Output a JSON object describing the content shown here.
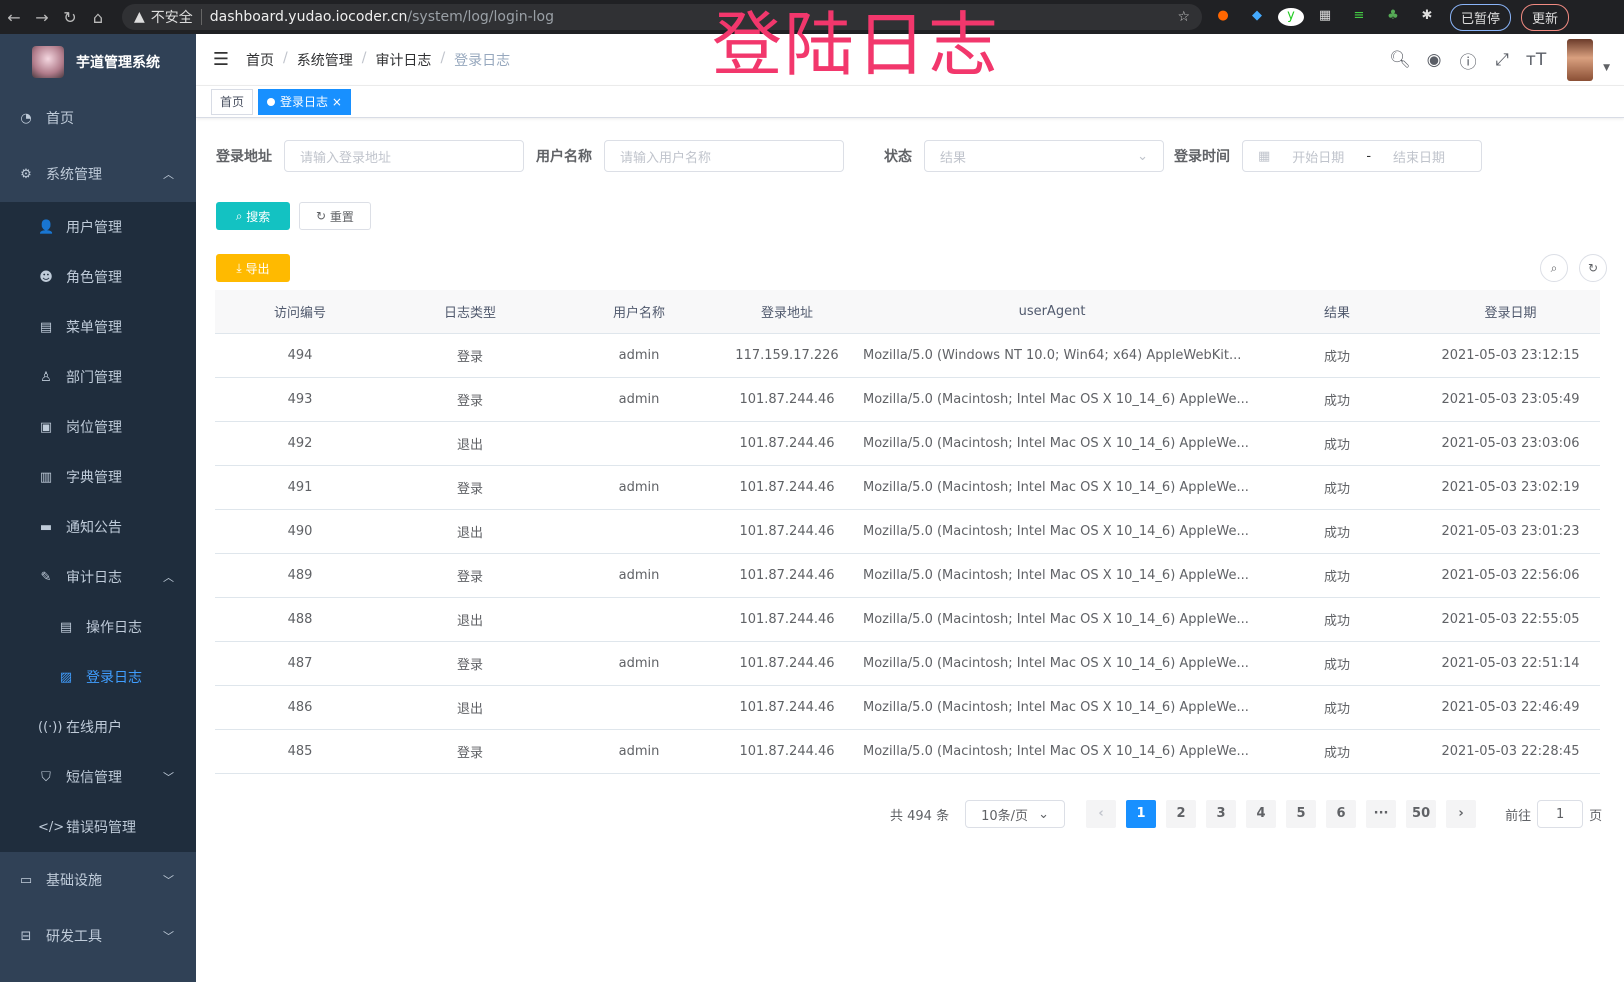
{
  "browser": {
    "security": "不安全",
    "host": "dashboard.yudao.iocoder.cn",
    "path": "/system/log/login-log",
    "paused": "已暂停",
    "update": "更新"
  },
  "overlay_title": "登陆日志",
  "sidebar": {
    "app_title": "芋道管理系统",
    "items": [
      {
        "label": "首页",
        "icon": "dashboard-icon"
      },
      {
        "label": "系统管理",
        "icon": "gear-icon",
        "expanded": true,
        "children": [
          {
            "label": "用户管理",
            "icon": "user-icon"
          },
          {
            "label": "角色管理",
            "icon": "peoples-icon"
          },
          {
            "label": "菜单管理",
            "icon": "tree-table-icon"
          },
          {
            "label": "部门管理",
            "icon": "tree-icon"
          },
          {
            "label": "岗位管理",
            "icon": "post-icon"
          },
          {
            "label": "字典管理",
            "icon": "dict-icon"
          },
          {
            "label": "通知公告",
            "icon": "message-icon"
          },
          {
            "label": "审计日志",
            "icon": "log-icon",
            "expanded": true,
            "children": [
              {
                "label": "操作日志",
                "icon": "form-icon"
              },
              {
                "label": "登录日志",
                "icon": "logininfor-icon",
                "active": true
              }
            ]
          },
          {
            "label": "在线用户",
            "icon": "online-icon"
          },
          {
            "label": "短信管理",
            "icon": "validcode-icon"
          },
          {
            "label": "错误码管理",
            "icon": "code-icon"
          }
        ]
      },
      {
        "label": "基础设施",
        "icon": "monitor-icon"
      },
      {
        "label": "研发工具",
        "icon": "tool-icon"
      }
    ]
  },
  "breadcrumb": [
    "首页",
    "系统管理",
    "审计日志",
    "登录日志"
  ],
  "tags": [
    "首页",
    "登录日志"
  ],
  "form": {
    "addr_label": "登录地址",
    "addr_ph": "请输入登录地址",
    "user_label": "用户名称",
    "user_ph": "请输入用户名称",
    "status_label": "状态",
    "status_ph": "结果",
    "time_label": "登录时间",
    "start_ph": "开始日期",
    "range_sep": "-",
    "end_ph": "结束日期",
    "search": "搜索",
    "reset": "重置",
    "export": "导出"
  },
  "table": {
    "columns": [
      "访问编号",
      "日志类型",
      "用户名称",
      "登录地址",
      "userAgent",
      "结果",
      "登录日期"
    ],
    "rows": [
      [
        "494",
        "登录",
        "admin",
        "117.159.17.226",
        "Mozilla/5.0 (Windows NT 10.0; Win64; x64) AppleWebKit...",
        "成功",
        "2021-05-03 23:12:15"
      ],
      [
        "493",
        "登录",
        "admin",
        "101.87.244.46",
        "Mozilla/5.0 (Macintosh; Intel Mac OS X 10_14_6) AppleWe...",
        "成功",
        "2021-05-03 23:05:49"
      ],
      [
        "492",
        "退出",
        "",
        "101.87.244.46",
        "Mozilla/5.0 (Macintosh; Intel Mac OS X 10_14_6) AppleWe...",
        "成功",
        "2021-05-03 23:03:06"
      ],
      [
        "491",
        "登录",
        "admin",
        "101.87.244.46",
        "Mozilla/5.0 (Macintosh; Intel Mac OS X 10_14_6) AppleWe...",
        "成功",
        "2021-05-03 23:02:19"
      ],
      [
        "490",
        "退出",
        "",
        "101.87.244.46",
        "Mozilla/5.0 (Macintosh; Intel Mac OS X 10_14_6) AppleWe...",
        "成功",
        "2021-05-03 23:01:23"
      ],
      [
        "489",
        "登录",
        "admin",
        "101.87.244.46",
        "Mozilla/5.0 (Macintosh; Intel Mac OS X 10_14_6) AppleWe...",
        "成功",
        "2021-05-03 22:56:06"
      ],
      [
        "488",
        "退出",
        "",
        "101.87.244.46",
        "Mozilla/5.0 (Macintosh; Intel Mac OS X 10_14_6) AppleWe...",
        "成功",
        "2021-05-03 22:55:05"
      ],
      [
        "487",
        "登录",
        "admin",
        "101.87.244.46",
        "Mozilla/5.0 (Macintosh; Intel Mac OS X 10_14_6) AppleWe...",
        "成功",
        "2021-05-03 22:51:14"
      ],
      [
        "486",
        "退出",
        "",
        "101.87.244.46",
        "Mozilla/5.0 (Macintosh; Intel Mac OS X 10_14_6) AppleWe...",
        "成功",
        "2021-05-03 22:46:49"
      ],
      [
        "485",
        "登录",
        "admin",
        "101.87.244.46",
        "Mozilla/5.0 (Macintosh; Intel Mac OS X 10_14_6) AppleWe...",
        "成功",
        "2021-05-03 22:28:45"
      ]
    ]
  },
  "pagination": {
    "total": "共 494 条",
    "page_size": "10条/页",
    "pages": [
      "1",
      "2",
      "3",
      "4",
      "5",
      "6",
      "···",
      "50"
    ],
    "current": "1",
    "goto_label": "前往",
    "goto_value": "1",
    "goto_suffix": "页"
  },
  "colors": {
    "sidebar": "#304156",
    "submenu": "#1f2d3d",
    "primary": "#1890ff",
    "search": "#13c2c2",
    "export": "#ffba00",
    "overlay": "#f2376c"
  }
}
